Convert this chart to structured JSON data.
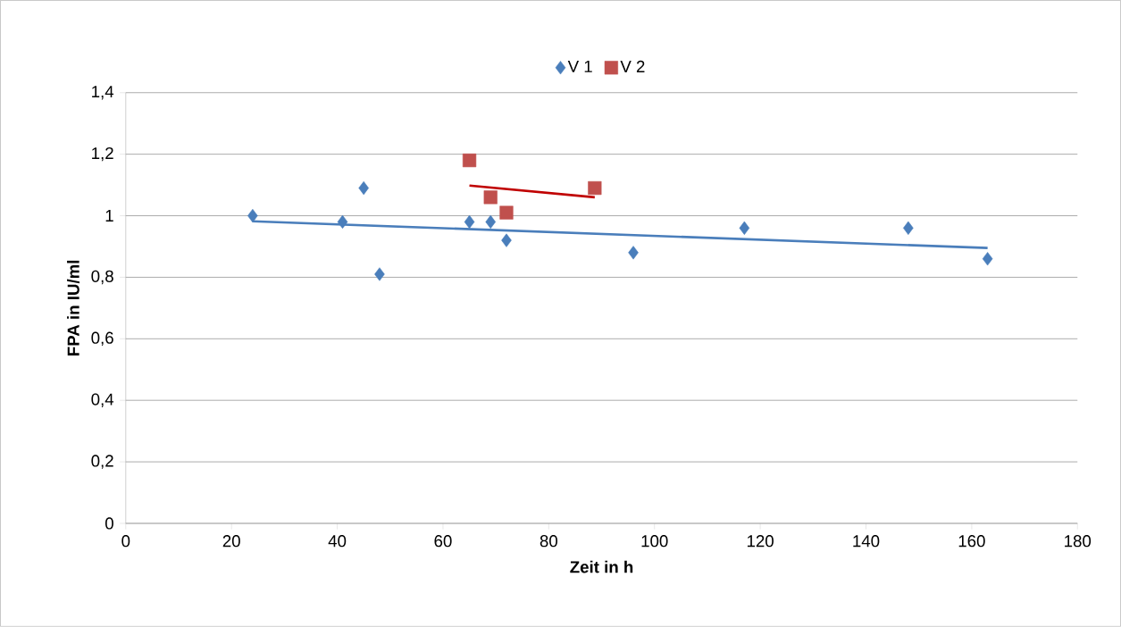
{
  "chart_data": {
    "type": "scatter",
    "xlabel": "Zeit in h",
    "ylabel": "FPA in IU/ml",
    "xlim": [
      0,
      180
    ],
    "ylim": [
      0,
      1.4
    ],
    "xticks": [
      0,
      20,
      40,
      60,
      80,
      100,
      120,
      140,
      160,
      180
    ],
    "yticks": [
      0,
      {
        "value": 0.2,
        "label": "0,2"
      },
      {
        "value": 0.4,
        "label": "0,4"
      },
      {
        "value": 0.6,
        "label": "0,6"
      },
      {
        "value": 0.8,
        "label": "0,8"
      },
      {
        "value": 1,
        "label": "1"
      },
      {
        "value": 1.2,
        "label": "1,2"
      },
      {
        "value": 1.4,
        "label": "1,4"
      }
    ],
    "grid": "y",
    "legend": "top",
    "series": [
      {
        "name": "V 1",
        "marker": "diamond",
        "color": "#4a7ebb",
        "x": [
          24,
          41,
          45,
          48,
          65,
          69,
          72,
          96,
          117,
          148,
          163
        ],
        "values": [
          1.0,
          0.98,
          1.09,
          0.81,
          0.98,
          0.98,
          0.92,
          0.88,
          0.96,
          0.96,
          0.86
        ]
      },
      {
        "name": "V 2",
        "marker": "square",
        "color": "#c0504d",
        "x": [
          65,
          69,
          72,
          88.7
        ],
        "values": [
          1.18,
          1.06,
          1.01,
          1.09
        ]
      },
      {
        "type": "line",
        "marker": "none",
        "color": "#4a7ebb",
        "x": [
          24,
          163
        ],
        "values": [
          0.982,
          0.895
        ]
      },
      {
        "type": "line",
        "marker": "none",
        "color": "#c00000",
        "x": [
          65,
          88.7
        ],
        "values": [
          1.098,
          1.06
        ]
      }
    ]
  }
}
